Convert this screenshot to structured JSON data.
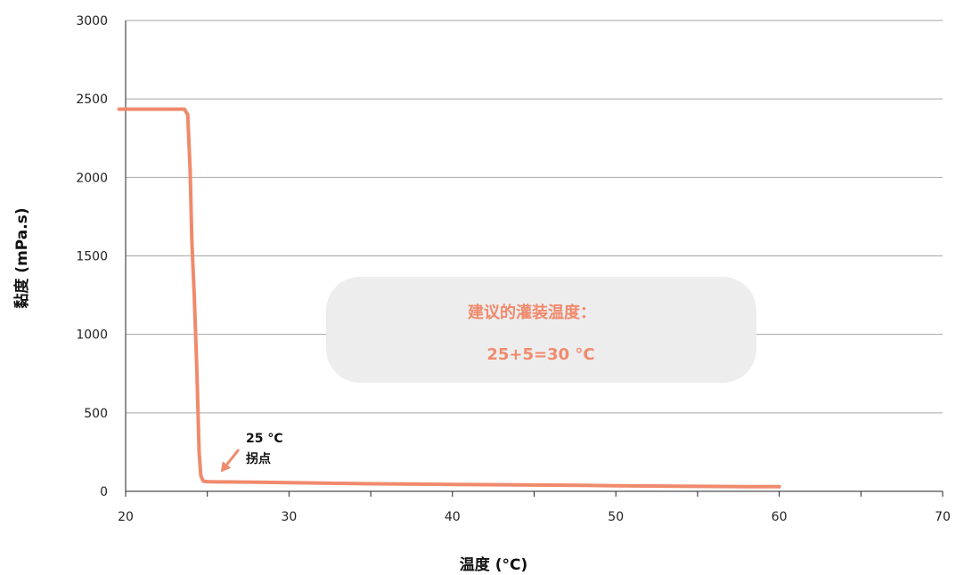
{
  "chart_data": {
    "type": "line",
    "xlabel": "温度 (°C)",
    "ylabel": "黏度 (mPa.s)",
    "xlim": [
      20,
      70
    ],
    "ylim": [
      0,
      3000
    ],
    "x_ticks": [
      20,
      30,
      40,
      50,
      60,
      70
    ],
    "y_ticks": [
      0,
      500,
      1000,
      1500,
      2000,
      2500,
      3000
    ],
    "grid": "horizontal",
    "legend": "none",
    "series": [
      {
        "color": "#F08A6C",
        "x": [
          19.6,
          21.0,
          22.0,
          23.0,
          23.6,
          23.8,
          23.95,
          24.05,
          24.2,
          24.35,
          24.5,
          24.6,
          24.75,
          25.0,
          25.5,
          26.0,
          28.0,
          30.0,
          32.0,
          35.0,
          38.0,
          40.0,
          43.0,
          45.0,
          48.0,
          50.0,
          52.0,
          55.0,
          58.0,
          60.0
        ],
        "y": [
          2435,
          2435,
          2435,
          2435,
          2435,
          2400,
          2050,
          1600,
          1250,
          800,
          250,
          100,
          65,
          62,
          60,
          60,
          58,
          55,
          52,
          48,
          46,
          44,
          42,
          40,
          38,
          36,
          34,
          32,
          30,
          30
        ]
      }
    ],
    "annotations": {
      "inflection_label_line1": "25 °C",
      "inflection_label_line2": "拐点",
      "inflection_point": {
        "x": 25.0,
        "y": 65
      },
      "recommend_line1": "建议的灌装温度：",
      "recommend_line2": "25+5=30 °C"
    }
  },
  "colors": {
    "series": "#F08A6C",
    "grid": "#A6A6A6",
    "axis": "#222222",
    "callout_bg": "#EDEDED",
    "accent_text": "#F08A6C"
  }
}
